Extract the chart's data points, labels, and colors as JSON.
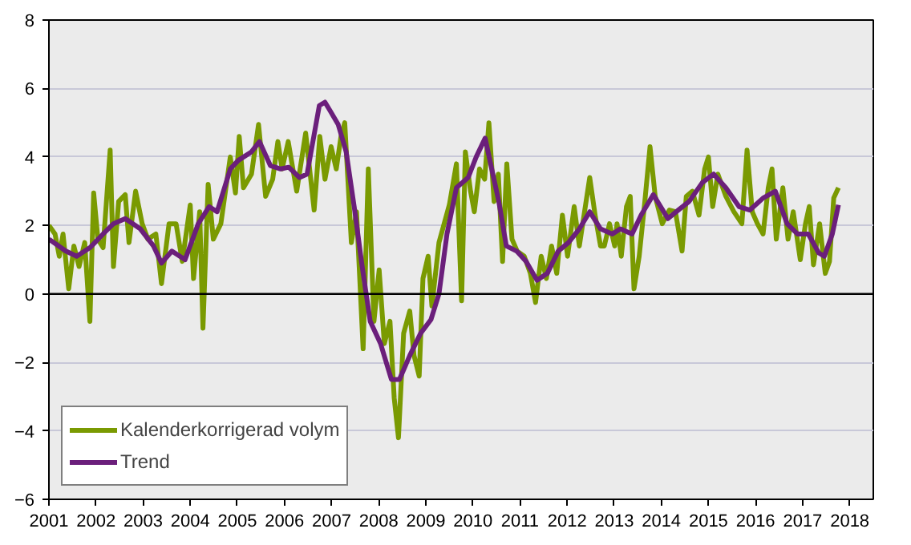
{
  "chart_data": {
    "type": "line",
    "xlim": [
      2001,
      2018.5
    ],
    "xticks": [
      2001,
      2002,
      2003,
      2004,
      2005,
      2006,
      2007,
      2008,
      2009,
      2010,
      2011,
      2012,
      2013,
      2014,
      2015,
      2016,
      2017,
      2018
    ],
    "ylim": [
      -6,
      8
    ],
    "yticks": [
      -6,
      -4,
      -2,
      0,
      2,
      4,
      6,
      8
    ],
    "grid": "y",
    "legend": "bottom left",
    "line_style": "solid",
    "marker": "none",
    "ref_lines": [
      {
        "axis": "y",
        "value": 0,
        "color": "#000000"
      }
    ],
    "series": [
      {
        "name": "Kalenderkorrigerad volym",
        "color": "#7a9a01",
        "x": [
          2001.0,
          2001.13,
          2001.22,
          2001.3,
          2001.42,
          2001.53,
          2001.64,
          2001.76,
          2001.87,
          2001.95,
          2002.04,
          2002.15,
          2002.3,
          2002.37,
          2002.48,
          2002.62,
          2002.7,
          2002.84,
          2002.98,
          2003.1,
          2003.27,
          2003.39,
          2003.55,
          2003.7,
          2003.83,
          2004.0,
          2004.07,
          2004.2,
          2004.27,
          2004.38,
          2004.49,
          2004.65,
          2004.85,
          2004.96,
          2005.04,
          2005.13,
          2005.3,
          2005.45,
          2005.6,
          2005.75,
          2005.86,
          2005.95,
          2006.08,
          2006.26,
          2006.45,
          2006.63,
          2006.75,
          2006.86,
          2006.99,
          2007.1,
          2007.2,
          2007.28,
          2007.42,
          2007.53,
          2007.67,
          2007.78,
          2007.9,
          2008.01,
          2008.12,
          2008.24,
          2008.33,
          2008.42,
          2008.53,
          2008.66,
          2008.75,
          2008.86,
          2008.94,
          2009.05,
          2009.13,
          2009.28,
          2009.39,
          2009.5,
          2009.65,
          2009.76,
          2009.84,
          2009.95,
          2010.03,
          2010.14,
          2010.25,
          2010.34,
          2010.45,
          2010.54,
          2010.63,
          2010.72,
          2010.83,
          2010.94,
          2011.09,
          2011.22,
          2011.33,
          2011.45,
          2011.56,
          2011.67,
          2011.78,
          2011.9,
          2012.01,
          2012.15,
          2012.26,
          2012.37,
          2012.48,
          2012.6,
          2012.71,
          2012.79,
          2012.9,
          2013.01,
          2013.06,
          2013.15,
          2013.26,
          2013.34,
          2013.42,
          2013.53,
          2013.65,
          2013.76,
          2013.87,
          2014.02,
          2014.17,
          2014.3,
          2014.44,
          2014.53,
          2014.66,
          2014.8,
          2014.92,
          2015.0,
          2015.09,
          2015.2,
          2015.37,
          2015.54,
          2015.71,
          2015.82,
          2015.93,
          2016.04,
          2016.16,
          2016.27,
          2016.35,
          2016.44,
          2016.58,
          2016.69,
          2016.8,
          2016.95,
          2017.06,
          2017.14,
          2017.23,
          2017.36,
          2017.48,
          2017.57,
          2017.66,
          2017.76
        ],
        "values": [
          2.0,
          1.75,
          1.1,
          1.75,
          0.15,
          1.4,
          0.8,
          1.5,
          -0.8,
          2.95,
          1.6,
          1.35,
          4.2,
          0.8,
          2.7,
          2.9,
          1.5,
          3.0,
          2.05,
          1.6,
          1.75,
          0.3,
          2.05,
          2.05,
          0.95,
          2.6,
          0.45,
          2.4,
          -1.0,
          3.2,
          1.6,
          2.05,
          4.0,
          2.95,
          4.6,
          3.1,
          3.5,
          4.95,
          2.85,
          3.35,
          4.45,
          3.65,
          4.45,
          3.0,
          4.7,
          2.45,
          4.6,
          3.35,
          4.3,
          3.65,
          4.6,
          5.0,
          1.5,
          2.4,
          -1.6,
          3.65,
          -0.8,
          0.7,
          -1.45,
          -0.8,
          -3.05,
          -4.2,
          -1.15,
          -0.5,
          -1.8,
          -2.4,
          0.45,
          1.1,
          -0.35,
          1.5,
          2.05,
          2.6,
          3.8,
          -0.2,
          4.15,
          3.0,
          2.4,
          3.65,
          3.35,
          5.0,
          2.7,
          3.5,
          0.95,
          3.8,
          1.6,
          1.25,
          1.1,
          0.6,
          -0.25,
          1.1,
          0.45,
          1.4,
          0.6,
          2.3,
          1.1,
          2.55,
          1.4,
          2.4,
          3.4,
          2.25,
          1.4,
          1.4,
          2.05,
          1.4,
          2.05,
          1.1,
          2.55,
          2.85,
          0.15,
          1.1,
          2.7,
          4.3,
          2.85,
          2.05,
          2.45,
          2.4,
          1.25,
          2.85,
          3.0,
          2.3,
          3.65,
          4.0,
          2.55,
          3.5,
          2.85,
          2.4,
          2.05,
          4.2,
          2.4,
          2.05,
          1.75,
          3.1,
          3.65,
          1.6,
          3.1,
          1.6,
          2.4,
          1.0,
          2.05,
          2.55,
          0.85,
          2.05,
          0.6,
          0.95,
          2.8,
          3.1
        ]
      },
      {
        "name": "Trend",
        "color": "#6b1f7b",
        "x": [
          2001.0,
          2001.36,
          2001.59,
          2001.87,
          2002.15,
          2002.37,
          2002.62,
          2002.94,
          2003.22,
          2003.39,
          2003.61,
          2003.89,
          2004.17,
          2004.4,
          2004.57,
          2004.85,
          2005.02,
          2005.3,
          2005.47,
          2005.7,
          2005.92,
          2006.09,
          2006.32,
          2006.48,
          2006.74,
          2006.86,
          2006.97,
          2007.14,
          2007.31,
          2007.48,
          2007.65,
          2007.82,
          2008.04,
          2008.27,
          2008.44,
          2008.66,
          2008.89,
          2009.11,
          2009.28,
          2009.45,
          2009.65,
          2009.9,
          2010.07,
          2010.26,
          2010.4,
          2010.55,
          2010.71,
          2010.93,
          2011.13,
          2011.36,
          2011.58,
          2011.81,
          2012.03,
          2012.26,
          2012.48,
          2012.71,
          2012.96,
          2013.13,
          2013.38,
          2013.57,
          2013.83,
          2014.14,
          2014.36,
          2014.59,
          2014.87,
          2015.11,
          2015.37,
          2015.65,
          2015.88,
          2016.16,
          2016.42,
          2016.67,
          2016.89,
          2017.12,
          2017.34,
          2017.46,
          2017.63,
          2017.76
        ],
        "values": [
          1.6,
          1.25,
          1.1,
          1.35,
          1.75,
          2.05,
          2.2,
          1.9,
          1.4,
          0.9,
          1.25,
          1.0,
          2.05,
          2.55,
          2.4,
          3.65,
          3.9,
          4.15,
          4.45,
          3.75,
          3.65,
          3.7,
          3.4,
          3.5,
          5.5,
          5.6,
          5.35,
          4.95,
          4.15,
          2.55,
          0.8,
          -0.8,
          -1.45,
          -2.5,
          -2.5,
          -1.8,
          -1.15,
          -0.75,
          0.0,
          1.75,
          3.1,
          3.4,
          4.0,
          4.55,
          3.65,
          2.7,
          1.4,
          1.25,
          0.95,
          0.4,
          0.6,
          1.25,
          1.5,
          1.9,
          2.4,
          1.9,
          1.75,
          1.9,
          1.75,
          2.3,
          2.9,
          2.2,
          2.45,
          2.7,
          3.25,
          3.5,
          3.1,
          2.55,
          2.45,
          2.8,
          3.0,
          2.05,
          1.75,
          1.75,
          1.2,
          1.1,
          1.75,
          2.6
        ]
      }
    ]
  }
}
